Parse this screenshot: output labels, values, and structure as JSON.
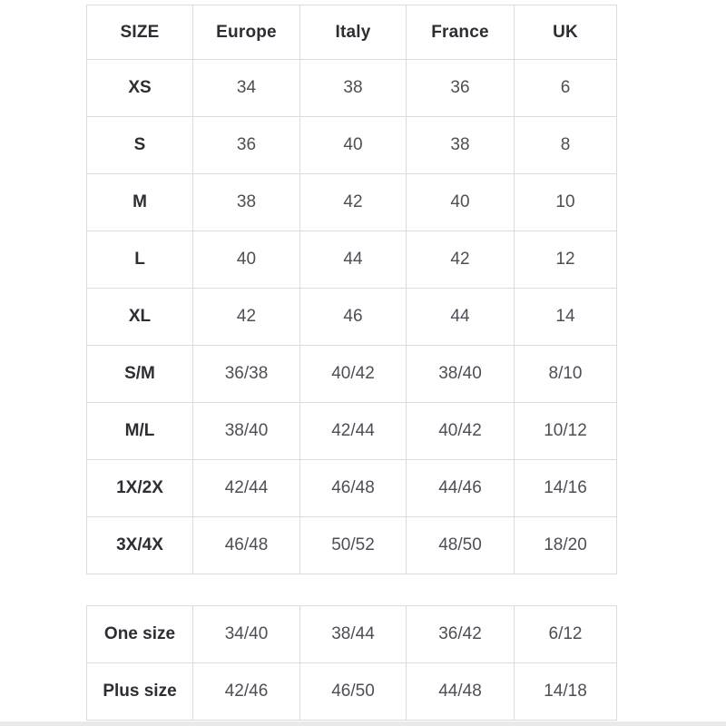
{
  "colors": {
    "background": "#ffffff",
    "table_border": "#dcdcdc",
    "header_text": "#2d2d33",
    "cell_text": "#4e4e56",
    "bottom_bar": "#e9e9e9"
  },
  "main_table": {
    "headers": [
      "SIZE",
      "Europe",
      "Italy",
      "France",
      "UK"
    ],
    "rows": [
      [
        "XS",
        "34",
        "38",
        "36",
        "6"
      ],
      [
        "S",
        "36",
        "40",
        "38",
        "8"
      ],
      [
        "M",
        "38",
        "42",
        "40",
        "10"
      ],
      [
        "L",
        "40",
        "44",
        "42",
        "12"
      ],
      [
        "XL",
        "42",
        "46",
        "44",
        "14"
      ],
      [
        "S/M",
        "36/38",
        "40/42",
        "38/40",
        "8/10"
      ],
      [
        "M/L",
        "38/40",
        "42/44",
        "40/42",
        "10/12"
      ],
      [
        "1X/2X",
        "42/44",
        "46/48",
        "44/46",
        "14/16"
      ],
      [
        "3X/4X",
        "46/48",
        "50/52",
        "48/50",
        "18/20"
      ]
    ]
  },
  "extra_table": {
    "rows": [
      [
        "One size",
        "34/40",
        "38/44",
        "36/42",
        "6/12"
      ],
      [
        "Plus size",
        "42/46",
        "46/50",
        "44/48",
        "14/18"
      ]
    ]
  }
}
